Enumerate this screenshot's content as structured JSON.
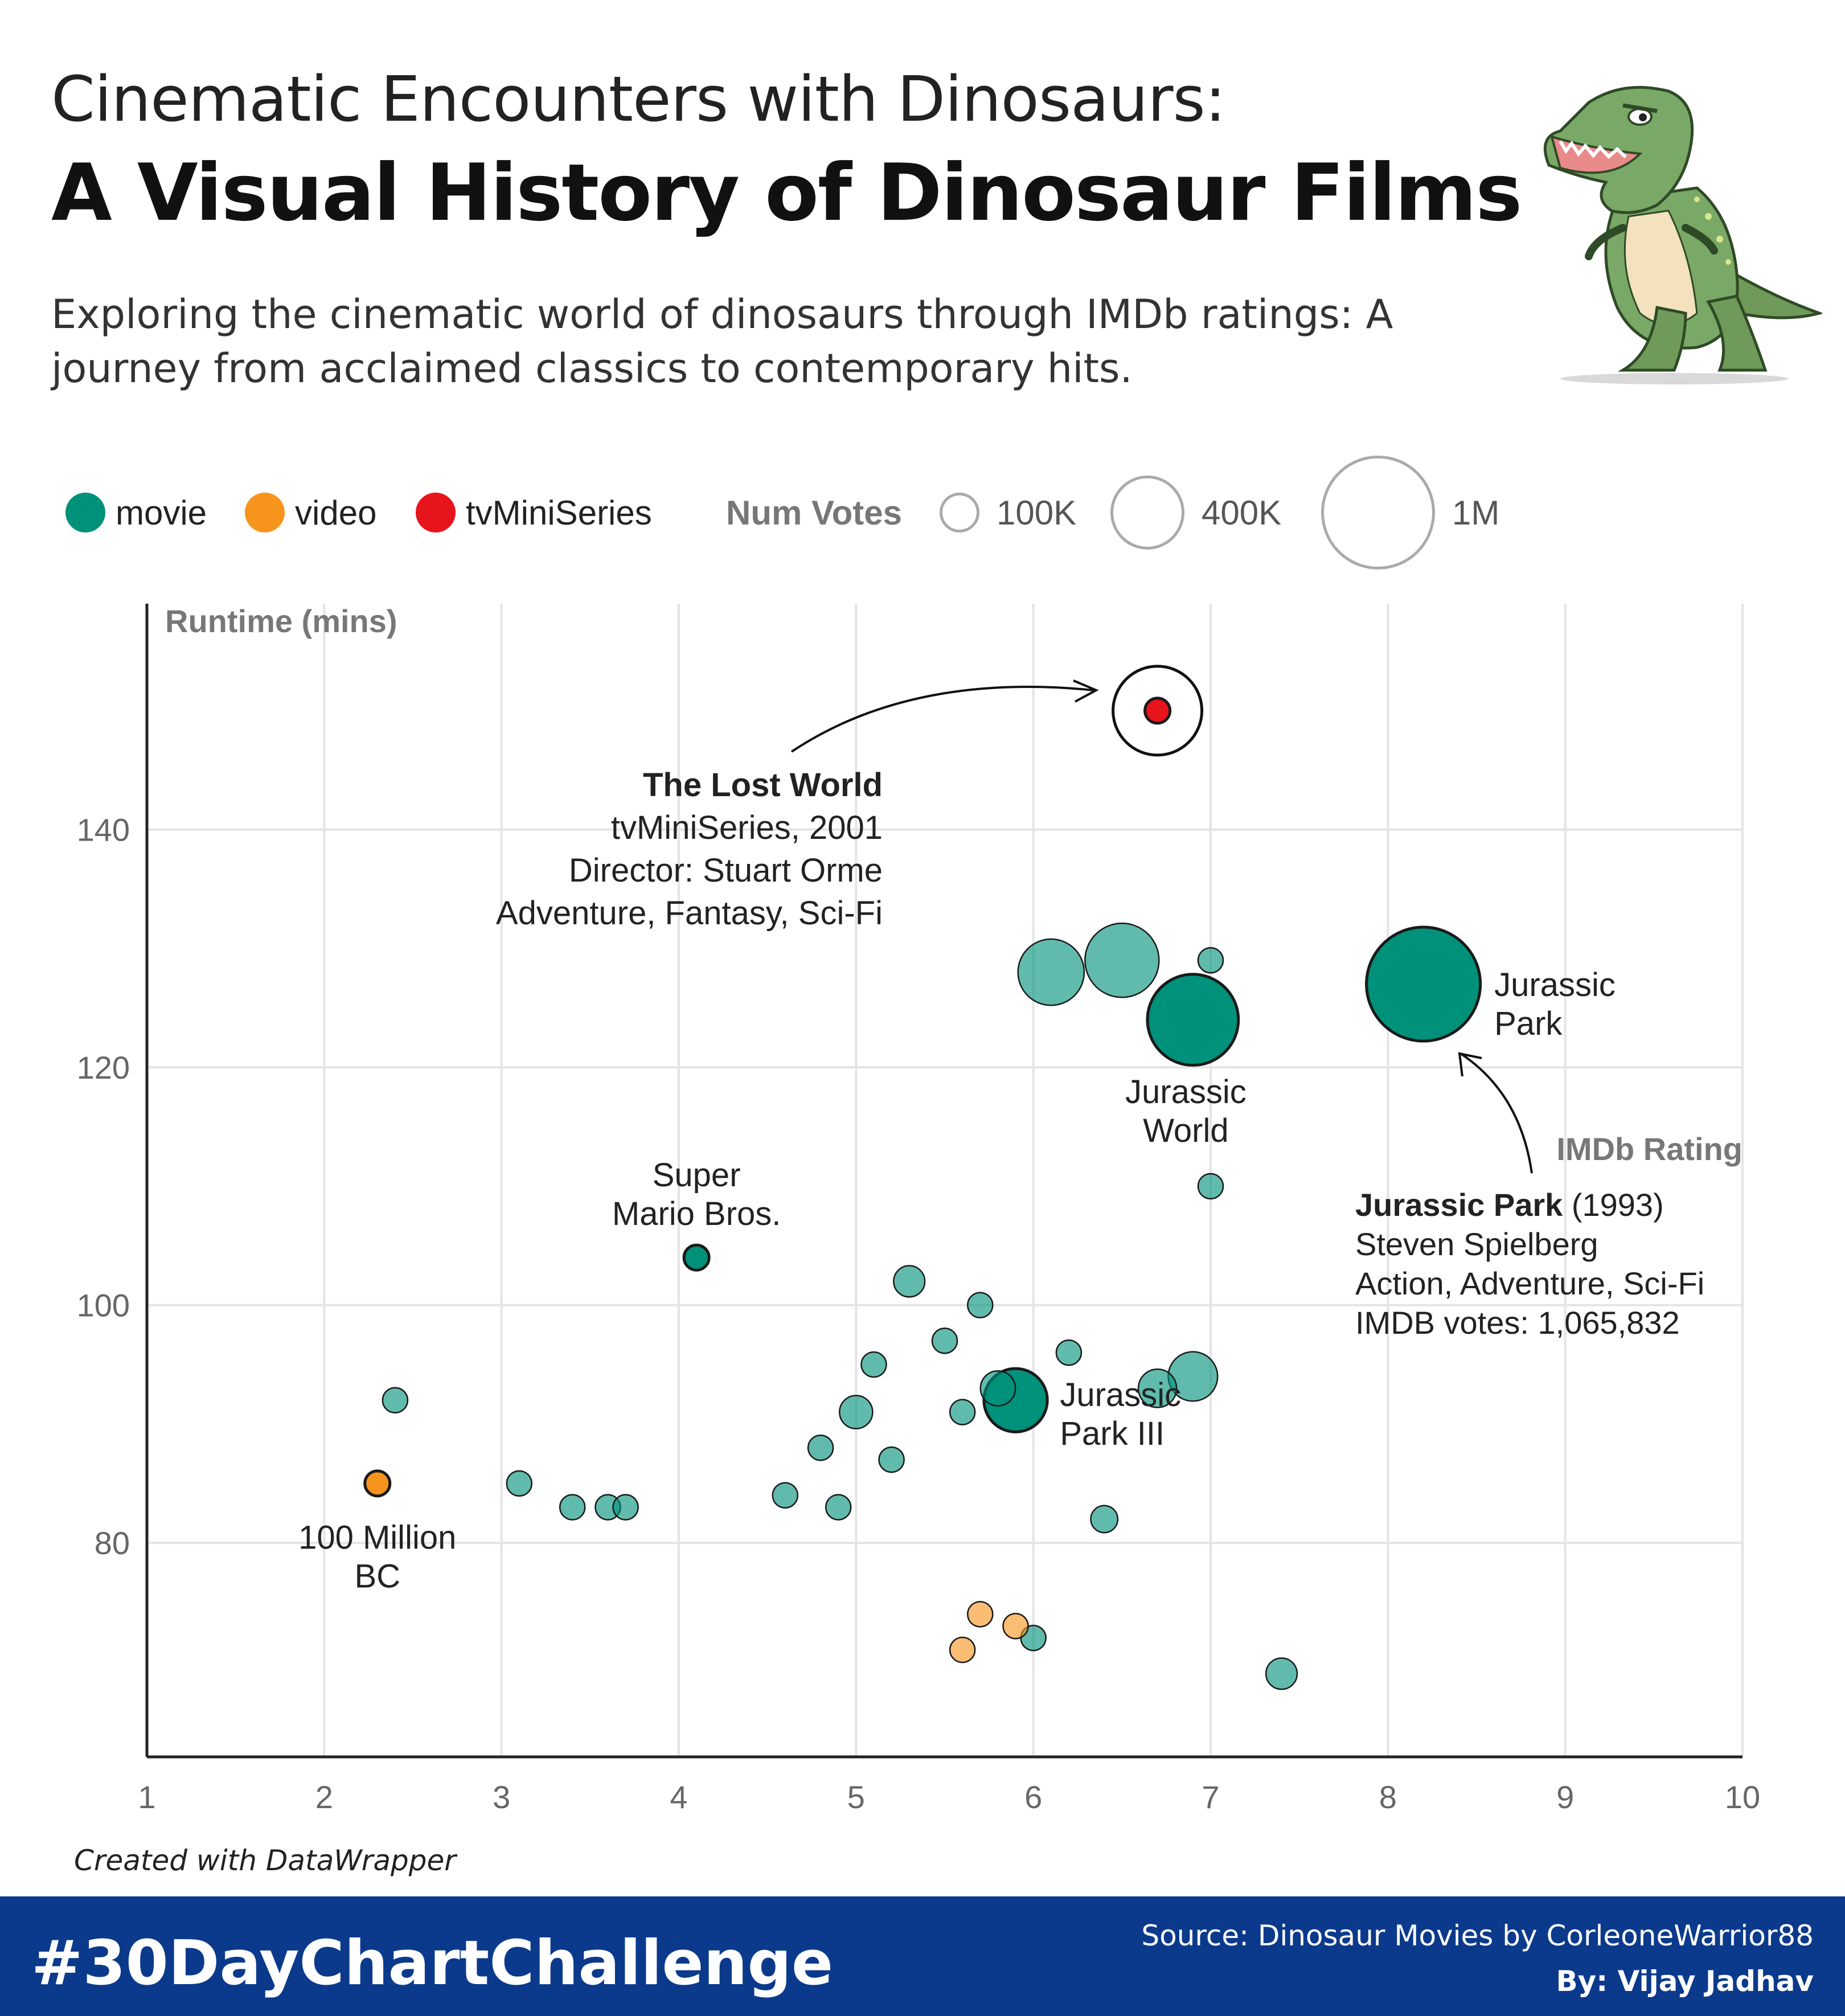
{
  "header": {
    "title_line1": "Cinematic Encounters with Dinosaurs:",
    "title_line2": "A Visual History of Dinosaur Films",
    "subtitle": "Exploring the cinematic world of dinosaurs through IMDb ratings: A journey from acclaimed classics to contemporary hits."
  },
  "legend": {
    "types": [
      {
        "label": "movie",
        "color": "#00917a"
      },
      {
        "label": "video",
        "color": "#f7941d"
      },
      {
        "label": "tvMiniSeries",
        "color": "#e8141c"
      }
    ],
    "size_title": "Num Votes",
    "sizes": [
      {
        "label": "100K",
        "votes": 100000
      },
      {
        "label": "400K",
        "votes": 400000
      },
      {
        "label": "1M",
        "votes": 1000000
      }
    ]
  },
  "chart_data": {
    "type": "scatter",
    "xlabel": "IMDb Rating",
    "ylabel": "Runtime (mins)",
    "xlim": [
      1,
      10
    ],
    "ylim": [
      62,
      159
    ],
    "xticks": [
      1,
      2,
      3,
      4,
      5,
      6,
      7,
      8,
      9,
      10
    ],
    "yticks": [
      80,
      100,
      120,
      140
    ],
    "grid": true,
    "points": [
      {
        "x": 6.7,
        "y": 150,
        "votes": 900,
        "type": "tvMiniSeries",
        "highlight": true
      },
      {
        "x": 8.2,
        "y": 127,
        "votes": 1065832,
        "type": "movie",
        "highlight": true
      },
      {
        "x": 6.9,
        "y": 124,
        "votes": 680000,
        "type": "movie",
        "highlight": true
      },
      {
        "x": 6.1,
        "y": 128,
        "votes": 360000,
        "type": "movie"
      },
      {
        "x": 6.5,
        "y": 129,
        "votes": 450000,
        "type": "movie"
      },
      {
        "x": 7.0,
        "y": 129,
        "votes": 30000,
        "type": "movie"
      },
      {
        "x": 7.0,
        "y": 110,
        "votes": 20000,
        "type": "movie"
      },
      {
        "x": 4.1,
        "y": 104,
        "votes": 50000,
        "type": "movie",
        "highlight": true
      },
      {
        "x": 5.3,
        "y": 102,
        "votes": 80000,
        "type": "movie"
      },
      {
        "x": 5.7,
        "y": 100,
        "votes": 20000,
        "type": "movie"
      },
      {
        "x": 5.5,
        "y": 97,
        "votes": 20000,
        "type": "movie"
      },
      {
        "x": 6.2,
        "y": 96,
        "votes": 20000,
        "type": "movie"
      },
      {
        "x": 5.1,
        "y": 95,
        "votes": 18000,
        "type": "movie"
      },
      {
        "x": 6.9,
        "y": 94,
        "votes": 200000,
        "type": "movie"
      },
      {
        "x": 6.7,
        "y": 93,
        "votes": 120000,
        "type": "movie"
      },
      {
        "x": 5.8,
        "y": 93,
        "votes": 100000,
        "type": "movie"
      },
      {
        "x": 5.9,
        "y": 92,
        "votes": 330000,
        "type": "movie",
        "highlight": true
      },
      {
        "x": 2.4,
        "y": 92,
        "votes": 18000,
        "type": "movie"
      },
      {
        "x": 5.0,
        "y": 91,
        "votes": 90000,
        "type": "movie"
      },
      {
        "x": 5.6,
        "y": 91,
        "votes": 20000,
        "type": "movie"
      },
      {
        "x": 4.8,
        "y": 88,
        "votes": 18000,
        "type": "movie"
      },
      {
        "x": 5.2,
        "y": 87,
        "votes": 25000,
        "type": "movie"
      },
      {
        "x": 3.1,
        "y": 85,
        "votes": 15000,
        "type": "movie"
      },
      {
        "x": 2.3,
        "y": 85,
        "votes": 20000,
        "type": "video",
        "highlight": true
      },
      {
        "x": 4.6,
        "y": 84,
        "votes": 15000,
        "type": "movie"
      },
      {
        "x": 3.4,
        "y": 83,
        "votes": 15000,
        "type": "movie"
      },
      {
        "x": 3.6,
        "y": 83,
        "votes": 15000,
        "type": "movie"
      },
      {
        "x": 3.7,
        "y": 83,
        "votes": 15000,
        "type": "movie"
      },
      {
        "x": 4.9,
        "y": 83,
        "votes": 15000,
        "type": "movie"
      },
      {
        "x": 6.4,
        "y": 82,
        "votes": 60000,
        "type": "movie"
      },
      {
        "x": 5.7,
        "y": 74,
        "votes": 20000,
        "type": "video"
      },
      {
        "x": 5.9,
        "y": 73,
        "votes": 20000,
        "type": "video"
      },
      {
        "x": 6.0,
        "y": 72,
        "votes": 25000,
        "type": "movie"
      },
      {
        "x": 5.6,
        "y": 71,
        "votes": 20000,
        "type": "video"
      },
      {
        "x": 7.4,
        "y": 69,
        "votes": 80000,
        "type": "movie"
      }
    ],
    "labels": [
      {
        "text": "Jurassic\nPark",
        "x": 8.6,
        "y": 126
      },
      {
        "text": "Jurassic\nWorld",
        "x": 6.86,
        "y": 117
      },
      {
        "text": "Super\nMario Bros.",
        "x": 4.1,
        "y": 110
      },
      {
        "text": "Jurassic\nPark III",
        "x": 6.15,
        "y": 91.5
      },
      {
        "text": "100 Million\nBC",
        "x": 2.3,
        "y": 79.5
      }
    ],
    "annotations": [
      {
        "title": "The Lost World",
        "lines": [
          "tvMiniSeries, 2001",
          "Director: Stuart Orme",
          "Adventure, Fantasy, Sci-Fi"
        ]
      },
      {
        "title": "Jurassic Park",
        "title_suffix": " (1993)",
        "lines": [
          "Steven Spielberg",
          "Action, Adventure, Sci-Fi",
          "IMDB votes: 1,065,832"
        ]
      }
    ]
  },
  "footer": {
    "note": "Created with DataWrapper",
    "hashtag": "#30DayChartChallenge",
    "source": "Source: Dinosaur Movies by CorleoneWarrior88",
    "byline": "By: Vijay Jadhav"
  }
}
